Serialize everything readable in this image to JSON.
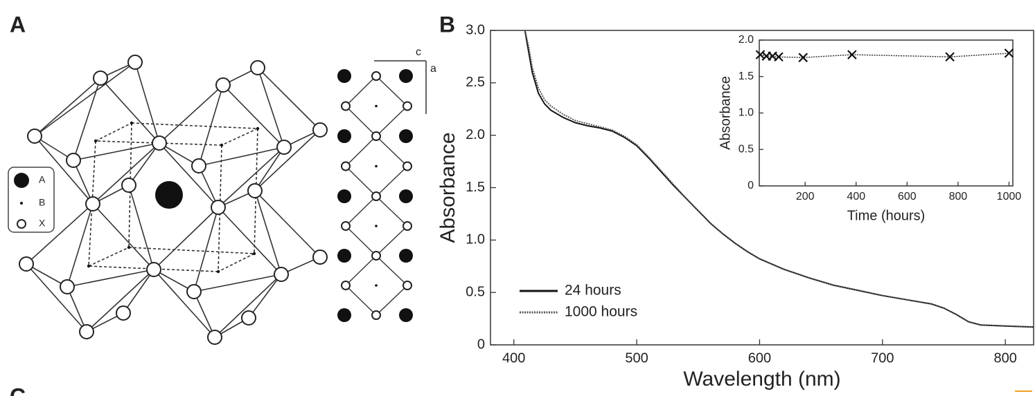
{
  "panel_a": {
    "label": "A",
    "legend": [
      "A",
      "B",
      "X"
    ],
    "axes": [
      "c",
      "a"
    ]
  },
  "panel_b_label": "B",
  "panel_c_label": "C",
  "chart_data": [
    {
      "type": "line",
      "xlabel": "Wavelength (nm)",
      "ylabel": "Absorbance",
      "x": [
        409,
        412,
        415,
        420,
        425,
        430,
        440,
        450,
        460,
        470,
        480,
        490,
        500,
        510,
        520,
        530,
        540,
        550,
        560,
        570,
        580,
        590,
        600,
        620,
        640,
        660,
        680,
        700,
        720,
        740,
        750,
        760,
        770,
        780,
        800,
        823
      ],
      "series": [
        {
          "name": "24 hours",
          "color": "#111111",
          "linestyle": "solid",
          "values": [
            3.0,
            2.8,
            2.6,
            2.4,
            2.3,
            2.24,
            2.17,
            2.12,
            2.09,
            2.07,
            2.04,
            1.98,
            1.9,
            1.78,
            1.65,
            1.52,
            1.4,
            1.28,
            1.16,
            1.06,
            0.97,
            0.89,
            0.82,
            0.72,
            0.64,
            0.57,
            0.52,
            0.47,
            0.43,
            0.39,
            0.35,
            0.29,
            0.22,
            0.19,
            0.18,
            0.17
          ]
        },
        {
          "name": "1000 hours",
          "color": "#555555",
          "linestyle": "dotted",
          "values": [
            3.0,
            2.85,
            2.65,
            2.45,
            2.34,
            2.28,
            2.2,
            2.14,
            2.11,
            2.08,
            2.05,
            1.99,
            1.91,
            1.79,
            1.66,
            1.53,
            1.4,
            1.28,
            1.16,
            1.06,
            0.97,
            0.89,
            0.82,
            0.72,
            0.64,
            0.57,
            0.52,
            0.47,
            0.43,
            0.39,
            0.35,
            0.29,
            0.22,
            0.19,
            0.18,
            0.17
          ]
        }
      ],
      "xlim": [
        381,
        823
      ],
      "xticks": [
        400,
        500,
        600,
        700,
        800
      ],
      "ylim": [
        0,
        3
      ],
      "yticks": [
        0,
        0.5,
        {
          "value": 1,
          "label": "1.0"
        },
        1.5,
        {
          "value": 2,
          "label": "2.0"
        },
        2.5,
        {
          "value": 3,
          "label": "3.0"
        }
      ],
      "legend": "lower left"
    },
    {
      "type": "line",
      "xlabel": "Time (hours)",
      "ylabel": "Absorbance",
      "x": [
        24,
        48,
        72,
        96,
        192,
        384,
        768,
        1000
      ],
      "series": [
        {
          "color": "#333333",
          "linestyle": "dotted",
          "marker": "x",
          "values": [
            1.8,
            1.78,
            1.78,
            1.77,
            1.76,
            1.8,
            1.77,
            1.82
          ]
        }
      ],
      "xlim": [
        20,
        1015
      ],
      "xticks": [
        200,
        400,
        600,
        800,
        1000
      ],
      "ylim": [
        0,
        2
      ],
      "yticks": [
        0,
        0.5,
        {
          "value": 1,
          "label": "1.0"
        },
        1.5,
        {
          "value": 2,
          "label": "2.0"
        }
      ]
    }
  ]
}
